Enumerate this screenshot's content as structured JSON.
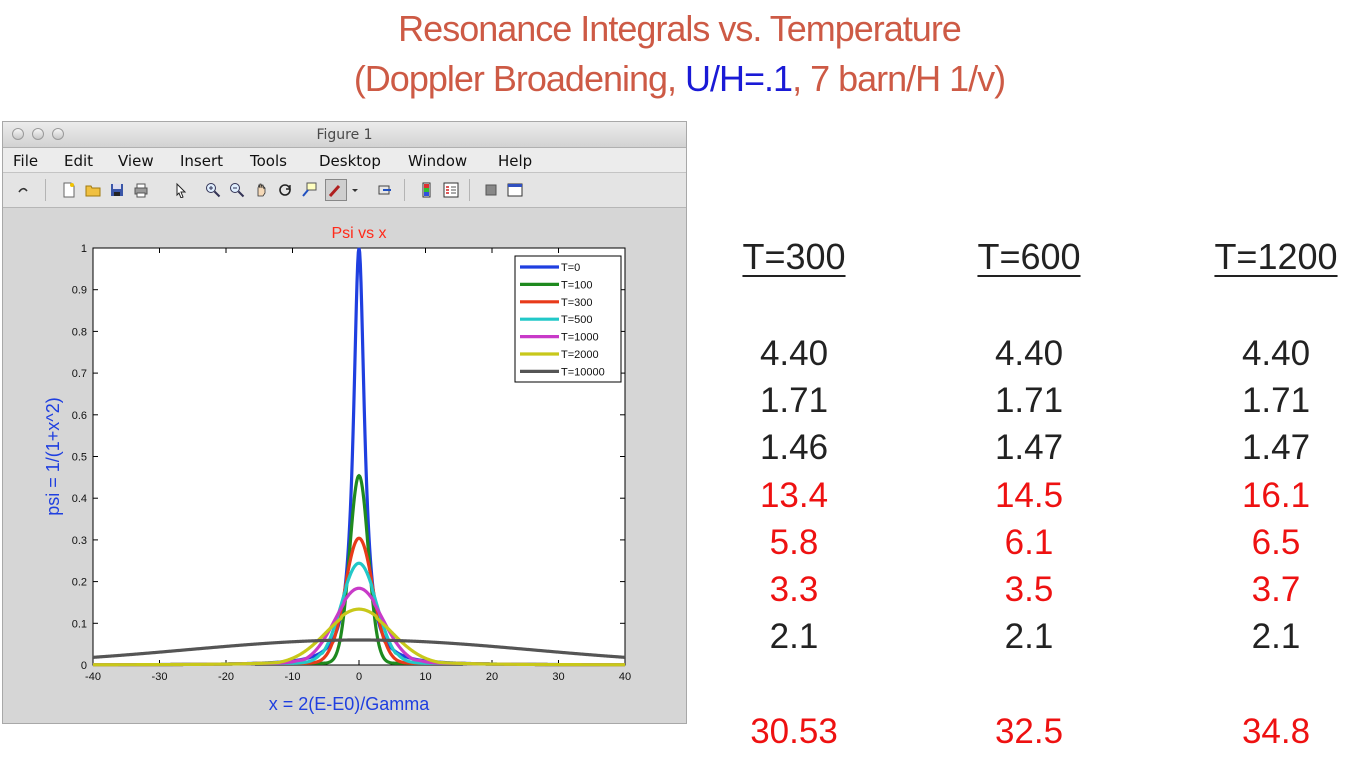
{
  "slide": {
    "title_line1": "Resonance Integrals vs. Temperature",
    "title_line2_pre": "(Doppler Broadening, ",
    "title_line2_highlight": "U/H=.1",
    "title_line2_post": ", 7 barn/H 1/v)",
    "colors": {
      "title": "#cd5a45",
      "highlight": "#1a1ad6",
      "table_black": "#222222",
      "table_red": "#ee1111"
    }
  },
  "window": {
    "title": "Figure 1",
    "menu": [
      "File",
      "Edit",
      "View",
      "Insert",
      "Tools",
      "Desktop",
      "Window",
      "Help"
    ],
    "toolbar_icons": [
      "edit-plot-icon",
      "new-figure-icon",
      "open-file-icon",
      "save-icon",
      "print-icon",
      "pointer-icon",
      "zoom-in-icon",
      "zoom-out-icon",
      "pan-icon",
      "rotate-icon",
      "data-cursor-icon",
      "brush-icon",
      "dropdown-icon",
      "link-plot-icon",
      "colorbar-icon",
      "legend-icon",
      "hide-plot-tools-icon",
      "show-plot-tools-icon"
    ]
  },
  "chart_data": {
    "type": "line",
    "title": "Psi vs x",
    "xlabel": "x = 2(E-E0)/Gamma",
    "ylabel": "psi = 1/(1+x^2)",
    "xlim": [
      -40,
      40
    ],
    "ylim": [
      0,
      1
    ],
    "xticks": [
      -40,
      -30,
      -20,
      -10,
      0,
      10,
      20,
      30,
      40
    ],
    "yticks": [
      0,
      0.1,
      0.2,
      0.3,
      0.4,
      0.5,
      0.6,
      0.7,
      0.8,
      0.9,
      1
    ],
    "grid": false,
    "legend_position": "top-right",
    "series": [
      {
        "name": "T=0",
        "color": "#1f3fe0",
        "peak": 1.0
      },
      {
        "name": "T=100",
        "color": "#1f8a1f",
        "peak": 0.45
      },
      {
        "name": "T=300",
        "color": "#e83a1a",
        "peak": 0.3
      },
      {
        "name": "T=500",
        "color": "#22c8c8",
        "peak": 0.24
      },
      {
        "name": "T=1000",
        "color": "#c83ac8",
        "peak": 0.18
      },
      {
        "name": "T=2000",
        "color": "#c8c81a",
        "peak": 0.13
      },
      {
        "name": "T=10000",
        "color": "#555555",
        "peak": 0.06
      }
    ]
  },
  "table": {
    "headers": [
      "T=300",
      "T=600",
      "T=1200"
    ],
    "rows": [
      {
        "values": [
          "4.40",
          "4.40",
          "4.40"
        ],
        "color": "black"
      },
      {
        "values": [
          "1.71",
          "1.71",
          "1.71"
        ],
        "color": "black"
      },
      {
        "values": [
          "1.46",
          "1.47",
          "1.47"
        ],
        "color": "black"
      },
      {
        "values": [
          "13.4",
          "14.5",
          "16.1"
        ],
        "color": "red"
      },
      {
        "values": [
          "5.8",
          "6.1",
          "6.5"
        ],
        "color": "red"
      },
      {
        "values": [
          "3.3",
          "3.5",
          "3.7"
        ],
        "color": "red"
      },
      {
        "values": [
          "2.1",
          "2.1",
          "2.1"
        ],
        "color": "black"
      }
    ],
    "totals": {
      "values": [
        "30.53",
        "32.5",
        "34.8"
      ],
      "color": "red"
    }
  }
}
